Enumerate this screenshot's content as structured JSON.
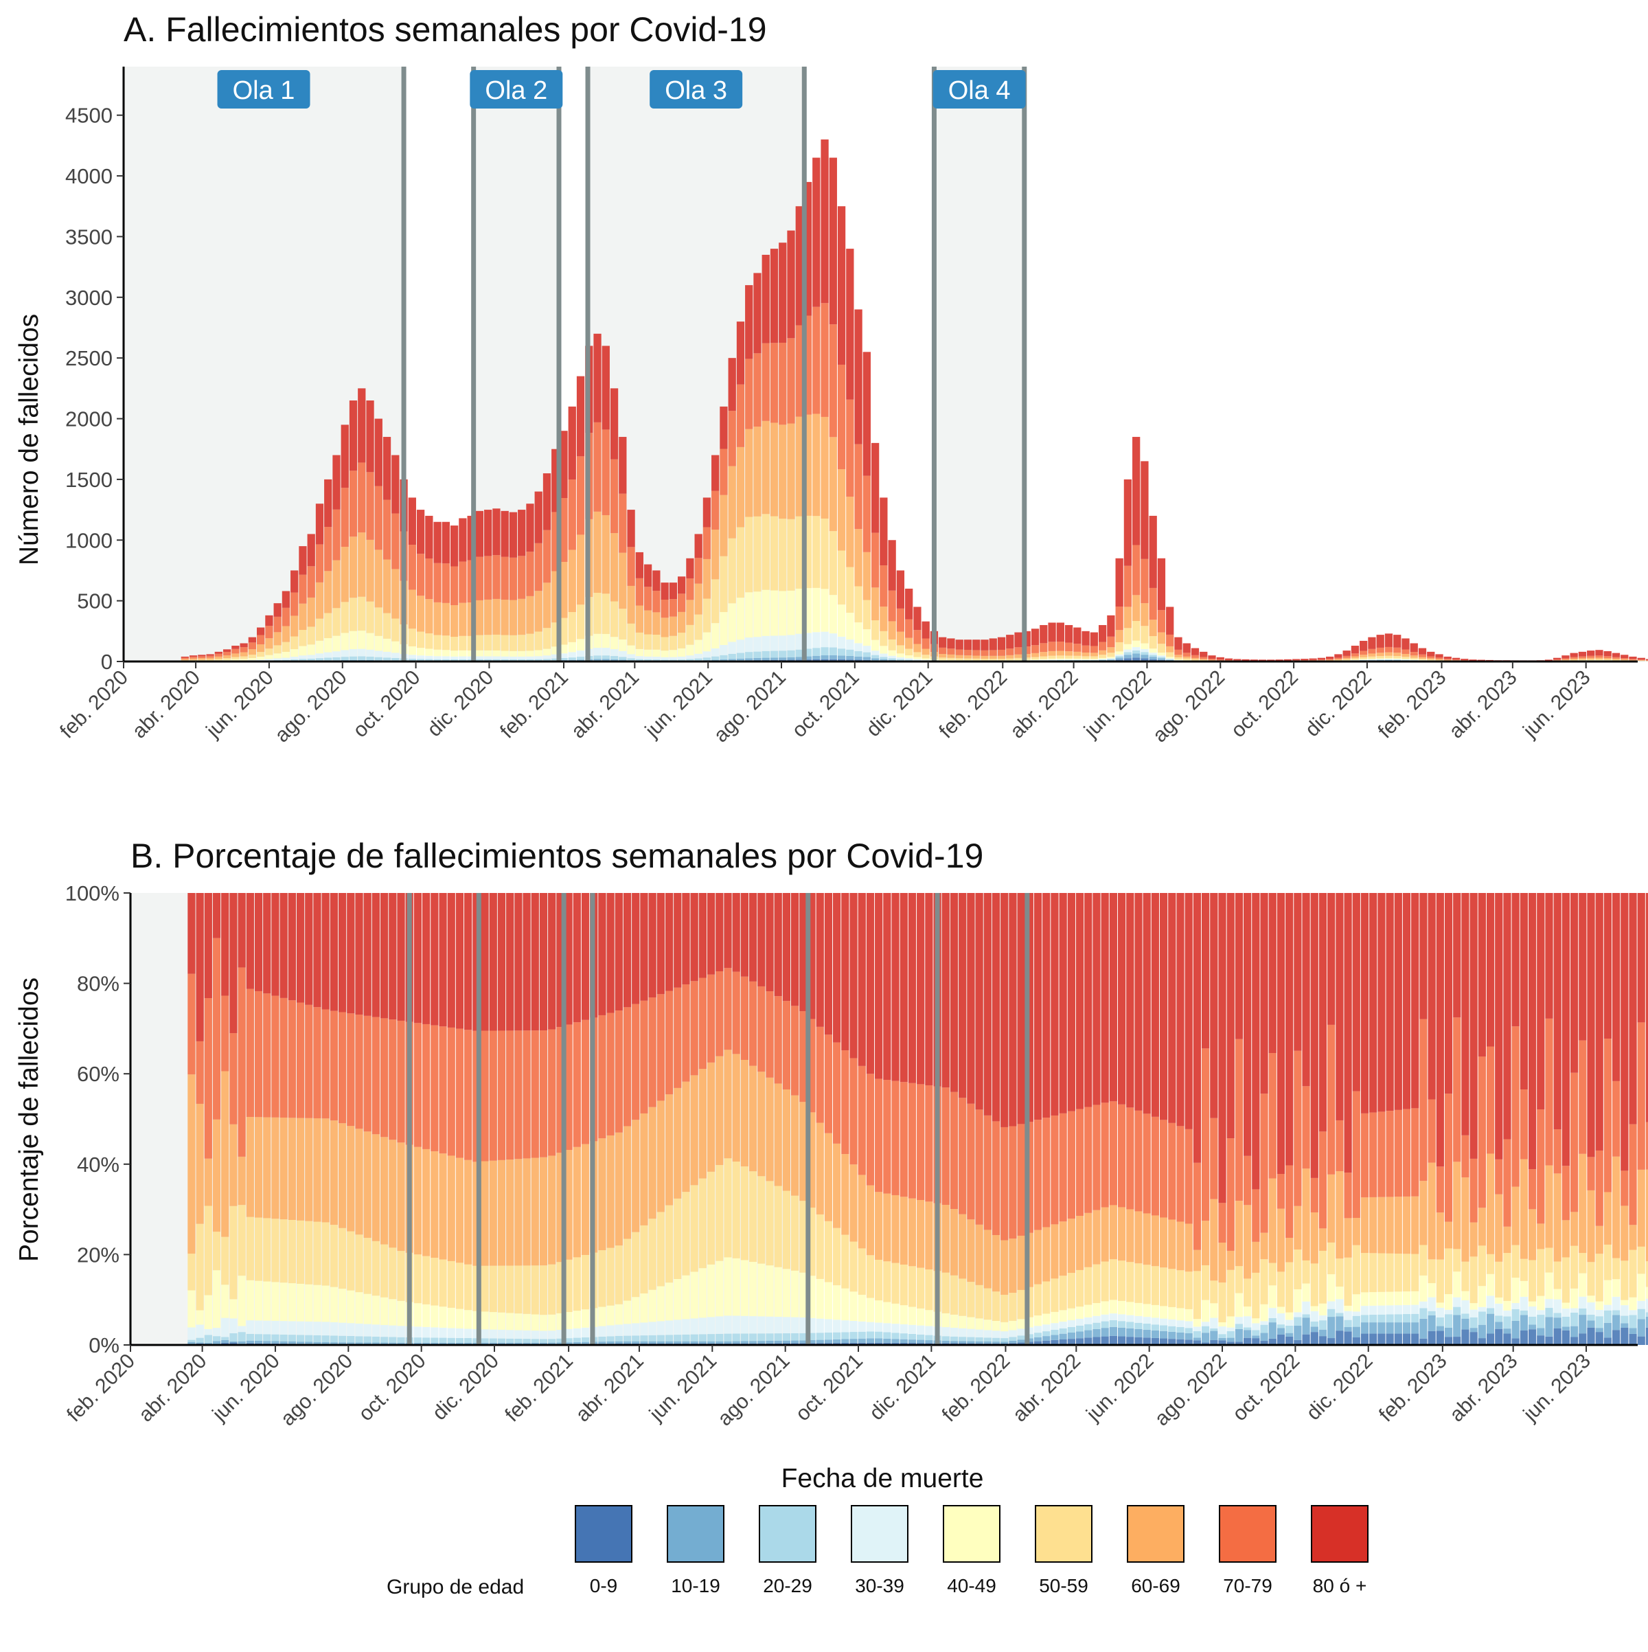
{
  "chart_data": [
    {
      "type": "bar",
      "stacked": true,
      "title": "A. Fallecimientos semanales por Covid-19",
      "ylabel": "Número de fallecidos",
      "xlabel": "",
      "ylim": [
        0,
        4900
      ],
      "y_ticks": [
        0,
        500,
        1000,
        1500,
        2000,
        2500,
        3000,
        3500,
        4000,
        4500
      ],
      "x_range": [
        "2020-02-01",
        "2023-07-14"
      ],
      "x_ticks": [
        {
          "date": "2020-02-01",
          "label": "feb. 2020"
        },
        {
          "date": "2020-04-01",
          "label": "abr. 2020"
        },
        {
          "date": "2020-06-01",
          "label": "jun. 2020"
        },
        {
          "date": "2020-08-01",
          "label": "ago. 2020"
        },
        {
          "date": "2020-10-01",
          "label": "oct. 2020"
        },
        {
          "date": "2020-12-01",
          "label": "dic. 2020"
        },
        {
          "date": "2021-02-01",
          "label": "feb. 2021"
        },
        {
          "date": "2021-04-01",
          "label": "abr. 2021"
        },
        {
          "date": "2021-06-01",
          "label": "jun. 2021"
        },
        {
          "date": "2021-08-01",
          "label": "ago. 2021"
        },
        {
          "date": "2021-10-01",
          "label": "oct. 2021"
        },
        {
          "date": "2021-12-01",
          "label": "dic. 2021"
        },
        {
          "date": "2022-02-01",
          "label": "feb. 2022"
        },
        {
          "date": "2022-04-01",
          "label": "abr. 2022"
        },
        {
          "date": "2022-06-01",
          "label": "jun. 2022"
        },
        {
          "date": "2022-08-01",
          "label": "ago. 2022"
        },
        {
          "date": "2022-10-01",
          "label": "oct. 2022"
        },
        {
          "date": "2022-12-01",
          "label": "dic. 2022"
        },
        {
          "date": "2023-02-01",
          "label": "feb. 2023"
        },
        {
          "date": "2023-04-01",
          "label": "abr. 2023"
        },
        {
          "date": "2023-06-01",
          "label": "jun. 2023"
        }
      ],
      "grid": false,
      "waves": [
        {
          "label": "Ola 1",
          "start": "2020-02-01",
          "end": "2020-09-21"
        },
        {
          "label": "Ola 2",
          "start": "2020-11-18",
          "end": "2021-01-28"
        },
        {
          "label": "Ola 3",
          "start": "2021-02-21",
          "end": "2021-08-20"
        },
        {
          "label": "Ola 4",
          "start": "2021-12-06",
          "end": "2022-02-19"
        }
      ],
      "weekly_totals": {
        "start_date": "2020-03-23",
        "interval_days": 7,
        "values": [
          40,
          50,
          55,
          60,
          80,
          100,
          130,
          150,
          200,
          280,
          380,
          480,
          580,
          750,
          950,
          1050,
          1300,
          1500,
          1700,
          1950,
          2150,
          2250,
          2150,
          2000,
          1850,
          1700,
          1500,
          1350,
          1250,
          1200,
          1150,
          1150,
          1120,
          1180,
          1200,
          1240,
          1250,
          1260,
          1240,
          1230,
          1250,
          1300,
          1400,
          1550,
          1750,
          1900,
          2100,
          2350,
          2600,
          2700,
          2600,
          2250,
          1850,
          1250,
          900,
          800,
          750,
          650,
          650,
          700,
          850,
          1050,
          1350,
          1700,
          2100,
          2500,
          2800,
          3100,
          3200,
          3350,
          3400,
          3450,
          3550,
          3750,
          3950,
          4150,
          4300,
          4150,
          3750,
          3400,
          2900,
          2550,
          1800,
          1350,
          1000,
          750,
          600,
          450,
          330,
          250,
          200,
          190,
          180,
          180,
          180,
          180,
          190,
          200,
          220,
          240,
          250,
          270,
          300,
          320,
          320,
          300,
          280,
          250,
          240,
          300,
          380,
          850,
          1500,
          1850,
          1650,
          1200,
          850,
          450,
          200,
          150,
          110,
          80,
          50,
          35,
          25,
          20,
          18,
          16,
          15,
          15,
          16,
          18,
          20,
          22,
          25,
          30,
          40,
          60,
          90,
          130,
          170,
          200,
          220,
          230,
          220,
          190,
          150,
          110,
          80,
          60,
          40,
          30,
          22,
          16,
          14,
          12,
          10,
          10,
          9,
          9,
          9,
          10,
          15,
          30,
          50,
          70,
          80,
          90,
          95,
          85,
          70,
          55,
          40,
          30,
          20,
          14,
          12,
          10,
          9,
          8,
          8,
          8,
          8,
          9,
          9,
          10,
          10,
          11,
          12,
          14,
          15,
          18,
          20,
          22,
          25
        ]
      },
      "age_groups": [
        "0-9",
        "10-19",
        "20-29",
        "30-39",
        "40-49",
        "50-59",
        "60-69",
        "70-79",
        "80 ó +"
      ]
    },
    {
      "type": "bar",
      "stacked": true,
      "percent": true,
      "title": "B. Porcentaje de fallecimientos semanales por Covid-19",
      "ylabel": "Porcentaje de fallecidos",
      "xlabel": "Fecha de muerte",
      "ylim": [
        0,
        100
      ],
      "y_ticks": [
        {
          "value": 0,
          "label": "0%"
        },
        {
          "value": 20,
          "label": "20%"
        },
        {
          "value": 40,
          "label": "40%"
        },
        {
          "value": 60,
          "label": "60%"
        },
        {
          "value": 80,
          "label": "80%"
        },
        {
          "value": 100,
          "label": "100%"
        }
      ],
      "grid": false,
      "legend": {
        "title": "Grupo de edad",
        "position": "bottom",
        "entries": [
          {
            "label": "0-9",
            "color": "#4575b4"
          },
          {
            "label": "10-19",
            "color": "#74add1"
          },
          {
            "label": "20-29",
            "color": "#abd9e9"
          },
          {
            "label": "30-39",
            "color": "#e0f3f8"
          },
          {
            "label": "40-49",
            "color": "#ffffbf"
          },
          {
            "label": "50-59",
            "color": "#fee090"
          },
          {
            "label": "60-69",
            "color": "#fdae61"
          },
          {
            "label": "70-79",
            "color": "#f46d43"
          },
          {
            "label": "80 ó +",
            "color": "#d73027"
          }
        ]
      },
      "share_anchors": [
        {
          "date": "2020-03-25",
          "shares": [
            0.2,
            0.3,
            1.0,
            2.0,
            7.0,
            15.0,
            25.0,
            27.0,
            22.5
          ]
        },
        {
          "date": "2020-05-01",
          "shares": [
            0.4,
            0.6,
            1.5,
            3.0,
            9.0,
            14.0,
            22.0,
            29.0,
            20.5
          ]
        },
        {
          "date": "2020-07-15",
          "shares": [
            0.2,
            0.4,
            1.5,
            3.0,
            8.0,
            14.0,
            23.0,
            24.0,
            25.9
          ]
        },
        {
          "date": "2020-09-15",
          "shares": [
            0.2,
            0.3,
            1.2,
            2.5,
            5.5,
            11.0,
            24.0,
            27.0,
            28.3
          ]
        },
        {
          "date": "2020-11-15",
          "shares": [
            0.2,
            0.3,
            1.0,
            2.0,
            4.0,
            10.0,
            23.0,
            29.0,
            30.5
          ]
        },
        {
          "date": "2021-01-15",
          "shares": [
            0.2,
            0.3,
            0.8,
            1.8,
            3.5,
            11.0,
            24.0,
            28.0,
            30.4
          ]
        },
        {
          "date": "2021-03-15",
          "shares": [
            0.3,
            0.5,
            1.2,
            2.5,
            4.5,
            13.0,
            25.0,
            27.0,
            26.0
          ]
        },
        {
          "date": "2021-06-15",
          "shares": [
            0.3,
            0.5,
            1.7,
            4.0,
            13.0,
            22.0,
            24.0,
            18.0,
            16.5
          ]
        },
        {
          "date": "2021-08-15",
          "shares": [
            0.4,
            0.6,
            1.6,
            3.5,
            10.0,
            16.0,
            22.0,
            20.0,
            25.9
          ]
        },
        {
          "date": "2021-10-15",
          "shares": [
            0.5,
            1.0,
            1.5,
            2.0,
            5.0,
            9.0,
            15.0,
            25.0,
            41.0
          ]
        },
        {
          "date": "2021-12-15",
          "shares": [
            0.4,
            0.5,
            1.0,
            2.0,
            3.0,
            9.0,
            15.0,
            26.0,
            43.1
          ]
        },
        {
          "date": "2022-02-01",
          "shares": [
            0.3,
            0.4,
            0.8,
            1.5,
            2.0,
            6.0,
            12.0,
            25.0,
            52.0
          ]
        },
        {
          "date": "2022-05-01",
          "shares": [
            2.0,
            2.0,
            1.5,
            1.5,
            3.0,
            9.0,
            12.0,
            23.0,
            46.0
          ]
        },
        {
          "date": "2022-08-01",
          "shares": [
            0.8,
            1.2,
            1.0,
            1.5,
            2.5,
            8.0,
            10.0,
            20.0,
            55.0
          ]
        },
        {
          "date": "2022-11-01",
          "shares": [
            2.5,
            2.5,
            1.5,
            2.0,
            3.0,
            9.0,
            12.0,
            18.0,
            49.5
          ]
        },
        {
          "date": "2023-02-01",
          "shares": [
            2.5,
            2.5,
            2.0,
            2.0,
            3.0,
            8.0,
            13.0,
            20.0,
            47.0
          ]
        },
        {
          "date": "2023-07-14",
          "shares": [
            3.0,
            2.0,
            2.0,
            2.0,
            3.0,
            8.0,
            13.0,
            18.0,
            49.0
          ]
        }
      ]
    }
  ]
}
